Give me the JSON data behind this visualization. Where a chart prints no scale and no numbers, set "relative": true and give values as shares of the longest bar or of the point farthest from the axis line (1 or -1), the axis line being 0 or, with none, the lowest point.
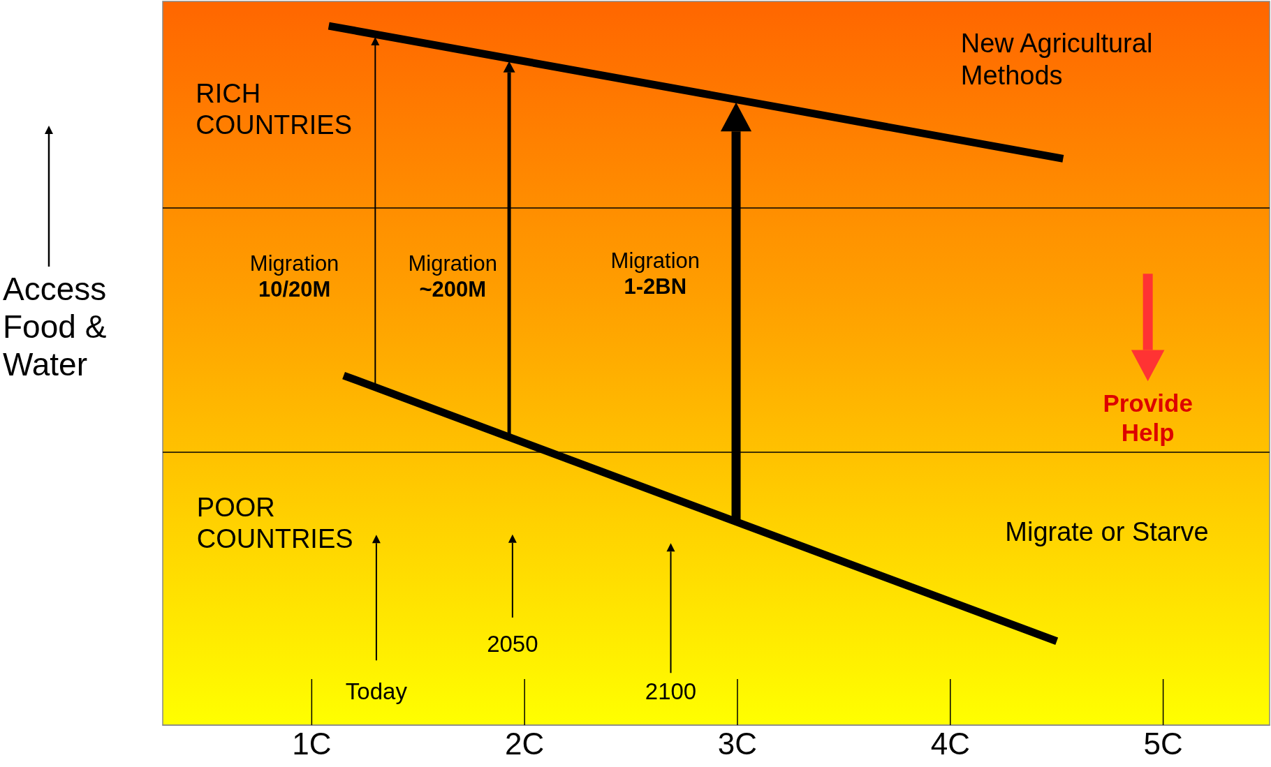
{
  "chart_data": {
    "type": "line",
    "relative": true,
    "ylabel": "Access\nFood &\nWater",
    "xlim": [
      0.3,
      5.5
    ],
    "xticks": [
      {
        "value": 1,
        "label": "1C"
      },
      {
        "value": 2,
        "label": "2C"
      },
      {
        "value": 3,
        "label": "3C"
      },
      {
        "value": 4,
        "label": "4C"
      },
      {
        "value": 5,
        "label": "5C"
      }
    ],
    "series": [
      {
        "color": "#000000",
        "x": [
          1.08,
          4.53
        ],
        "values": [
          1,
          0.81
        ]
      },
      {
        "color": "#000000",
        "x": [
          1.15,
          4.5
        ],
        "values": [
          0.5,
          0.12
        ]
      }
    ],
    "ref_lines": [
      {
        "axis": "y",
        "value": 0.74,
        "color": "#000000"
      },
      {
        "axis": "y",
        "value": 0.39,
        "color": "#000000"
      }
    ],
    "annotations": [
      "RICH\nCOUNTRIES",
      "POOR\nCOUNTRIES",
      "New Agricultural\nMethods",
      "Migrate or Starve",
      "Provide\nHelp",
      "Migration\n10/20M",
      "Migration\n~200M",
      "Migration\n1-2BN",
      "Today",
      "2050",
      "2100"
    ],
    "grid": false,
    "marker": "none",
    "line_style": "solid"
  }
}
